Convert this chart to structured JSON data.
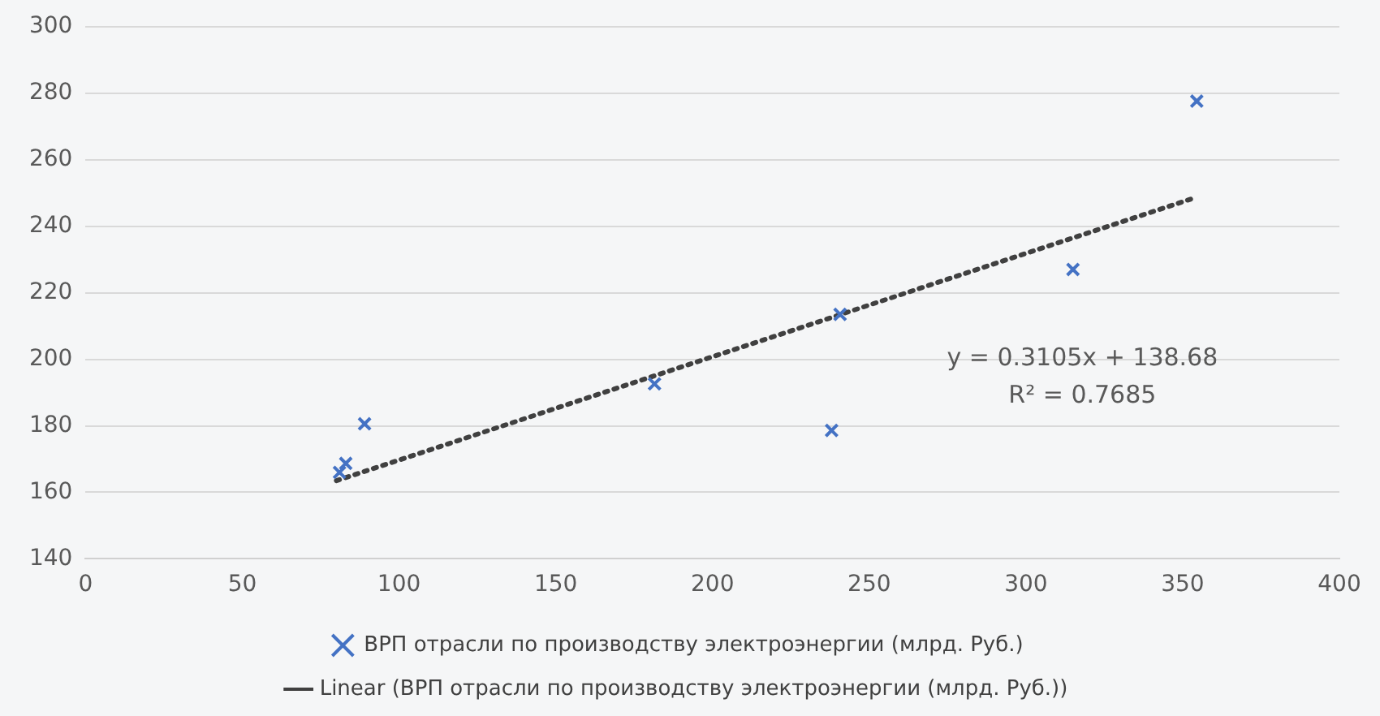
{
  "chart_data": {
    "type": "scatter",
    "xlim": [
      0,
      400
    ],
    "xticks": [
      0,
      50,
      100,
      150,
      200,
      250,
      300,
      350,
      400
    ],
    "ylim": [
      140,
      300
    ],
    "yticks": [
      140,
      160,
      180,
      200,
      220,
      240,
      260,
      280,
      300
    ],
    "grid": "y",
    "legend": "bottom",
    "marker": "cross",
    "series": [
      {
        "name": "ВРП отрасли по производству электроэнергии (млрд. Руб.)",
        "color": "#4472c4",
        "x": [
          81,
          83,
          89,
          181.5,
          238,
          240.7,
          315,
          354.5
        ],
        "values": [
          166,
          168.7,
          180.6,
          192.6,
          178.6,
          213.5,
          227,
          277.6
        ]
      },
      {
        "name": "Linear (ВРП отрасли по производству электроэнергии (млрд. Руб.))",
        "type": "line",
        "line_style": "dotted",
        "marker": "none",
        "color": "#404040",
        "x": [
          80,
          354
        ],
        "values": [
          163.5,
          248.6
        ]
      }
    ],
    "annotations": [
      "y = 0.3105x + 138.68",
      "R² = 0.7685"
    ]
  }
}
